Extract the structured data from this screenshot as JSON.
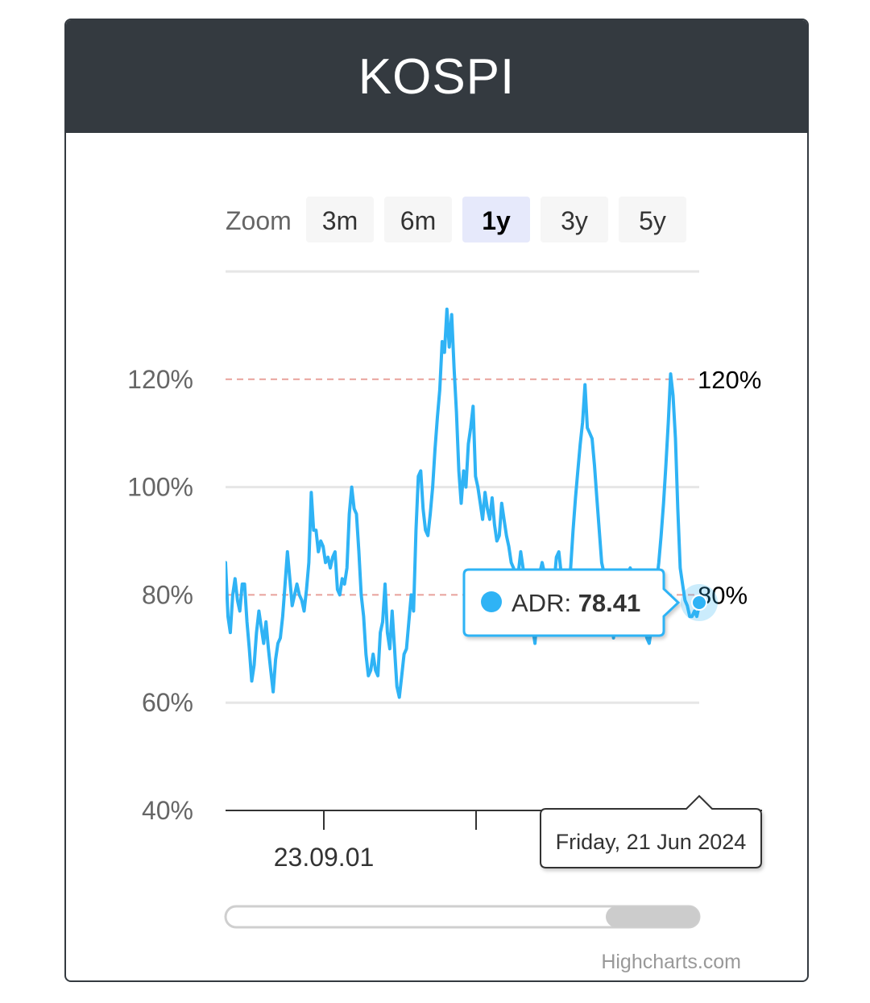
{
  "card": {
    "title": "KOSPI"
  },
  "zoom": {
    "label": "Zoom",
    "buttons": [
      "3m",
      "6m",
      "1y",
      "3y",
      "5y"
    ],
    "selected": "1y"
  },
  "colors": {
    "header_bg": "#343a40",
    "series": "#2fb3f5",
    "threshold_line": "#e8a19b",
    "zoom_selected_bg": "#e6e9fb",
    "zoom_bg": "#f6f6f6"
  },
  "tooltip": {
    "series": "ADR",
    "separator": ": ",
    "value": "78.41",
    "date": "Friday, 21 Jun 2024"
  },
  "credits": "Highcharts.com",
  "chart_data": {
    "type": "line",
    "series": [
      {
        "name": "ADR",
        "values": [
          86,
          76,
          73,
          80,
          83,
          79,
          77,
          82,
          82,
          75,
          70,
          64,
          67,
          73,
          77,
          74,
          71,
          75,
          70,
          66,
          62,
          68,
          71,
          72,
          76,
          82,
          88,
          83,
          78,
          80,
          82,
          80,
          79,
          77,
          81,
          86,
          99,
          92,
          92,
          88,
          90,
          89,
          86,
          87,
          85,
          87,
          88,
          81,
          80,
          83,
          82,
          85,
          95,
          100,
          96,
          95,
          88,
          80,
          76,
          69,
          65,
          66,
          69,
          66,
          65,
          73,
          75,
          82,
          73,
          70,
          77,
          70,
          63,
          61,
          65,
          69,
          70,
          75,
          80,
          77,
          92,
          102,
          103,
          96,
          92,
          91,
          95,
          100,
          107,
          113,
          118,
          127,
          125,
          133,
          126,
          132,
          122,
          114,
          103,
          97,
          103,
          100,
          108,
          111,
          115,
          102,
          100,
          97,
          94,
          99,
          96,
          94,
          98,
          93,
          90,
          91,
          97,
          94,
          91,
          89,
          86,
          85,
          82,
          84,
          88,
          85,
          77,
          75,
          74,
          74,
          71,
          77,
          84,
          86,
          84,
          81,
          76,
          73,
          82,
          87,
          88,
          84,
          82,
          80,
          81,
          85,
          92,
          98,
          103,
          108,
          112,
          119,
          111,
          110,
          109,
          104,
          98,
          92,
          86,
          84,
          80,
          77,
          78,
          72,
          78,
          83,
          81,
          79,
          78,
          84,
          85,
          84,
          82,
          80,
          80,
          77,
          74,
          72,
          71,
          74,
          77,
          82,
          86,
          91,
          97,
          104,
          112,
          121,
          117,
          109,
          96,
          85,
          82,
          79,
          78,
          76,
          76,
          77,
          76,
          78
        ],
        "last_value": 78.41
      }
    ],
    "x_tick_labels": [
      "23.09.01"
    ],
    "x_tick_marks": 3,
    "x_range_end": "2024-06-21",
    "y_ticks": [
      "40%",
      "60%",
      "80%",
      "100%",
      "120%"
    ],
    "ylim": [
      40,
      140
    ],
    "plot_bands_lines": [
      {
        "value": 120,
        "label": "120%"
      },
      {
        "value": 80,
        "label": "80%"
      }
    ],
    "grid": true,
    "legend": "none"
  }
}
